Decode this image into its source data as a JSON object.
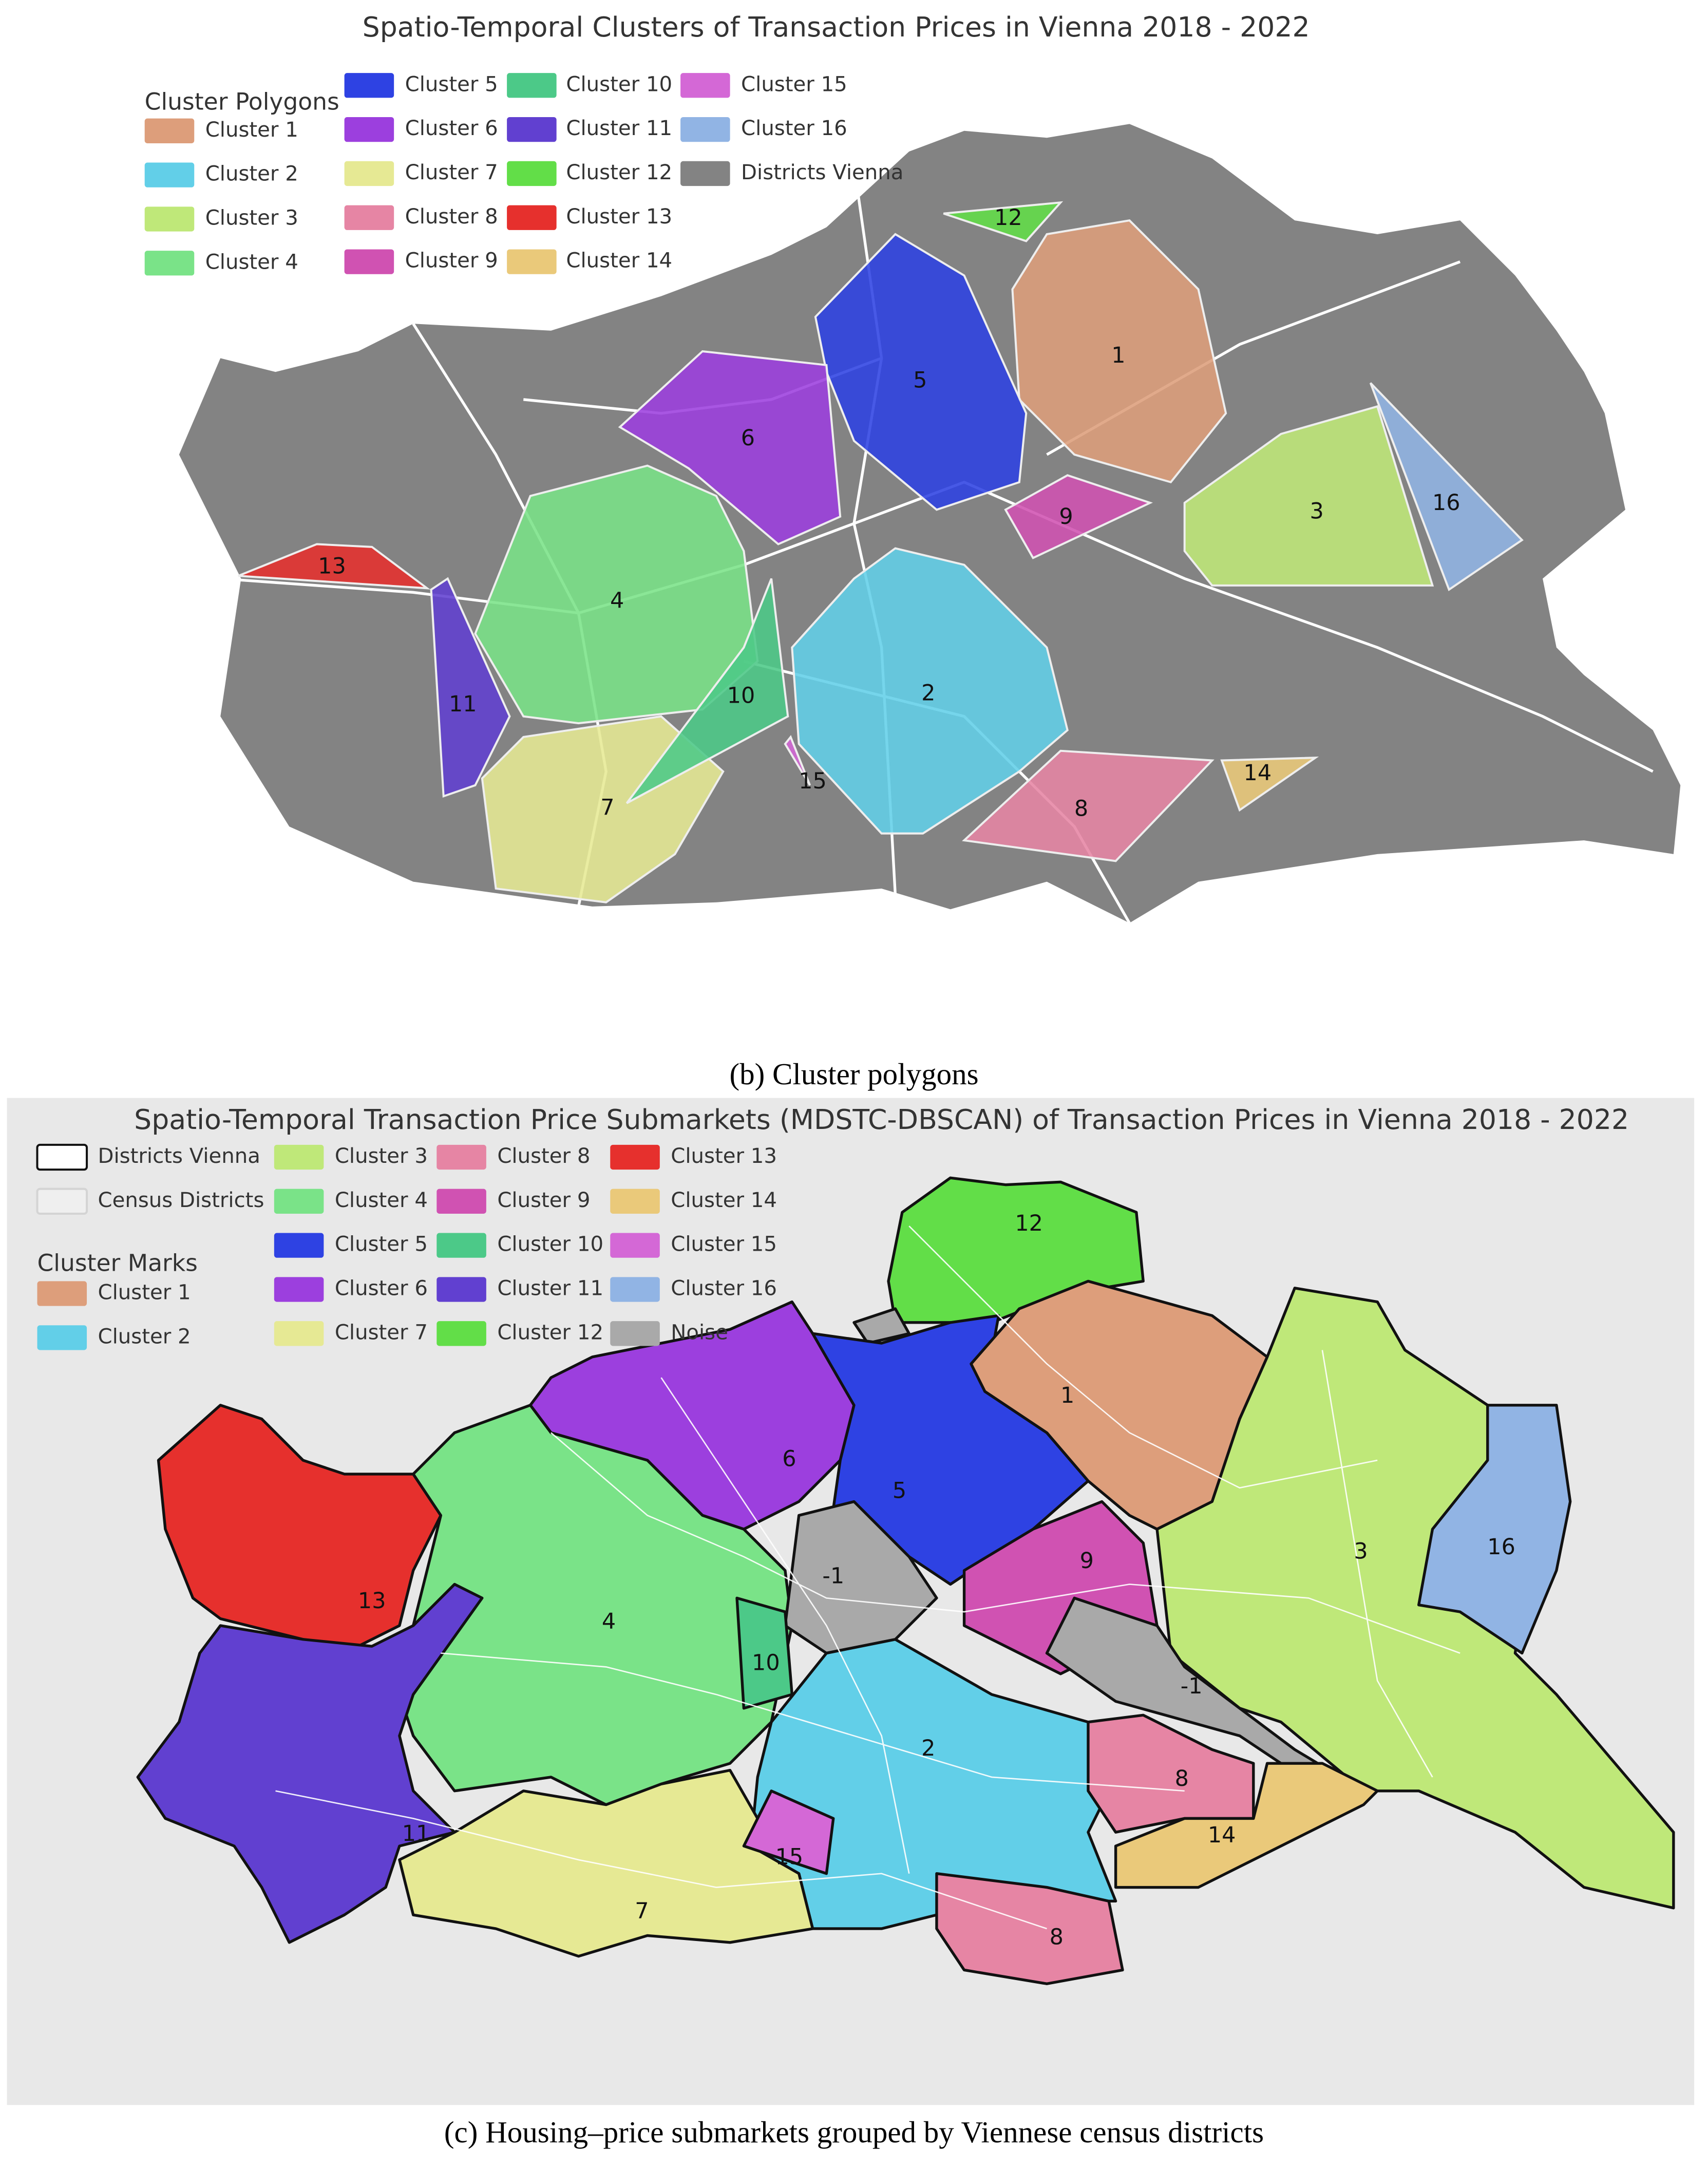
{
  "panel_b": {
    "title": "Spatio-Temporal Clusters of Transaction Prices in Vienna 2018 - 2022",
    "legend_title": "Cluster Polygons",
    "legend": [
      {
        "label": "Cluster 1",
        "color": "#dd9e7b"
      },
      {
        "label": "Cluster 2",
        "color": "#62cfe8"
      },
      {
        "label": "Cluster 3",
        "color": "#bfe879"
      },
      {
        "label": "Cluster 4",
        "color": "#7ae388"
      },
      {
        "label": "Cluster 5",
        "color": "#2e42e3"
      },
      {
        "label": "Cluster 6",
        "color": "#9c3fde"
      },
      {
        "label": "Cluster 7",
        "color": "#e6e994"
      },
      {
        "label": "Cluster 8",
        "color": "#e685a4"
      },
      {
        "label": "Cluster 9",
        "color": "#d052b2"
      },
      {
        "label": "Cluster 10",
        "color": "#4cc988"
      },
      {
        "label": "Cluster 11",
        "color": "#6140d0"
      },
      {
        "label": "Cluster 12",
        "color": "#62de48"
      },
      {
        "label": "Cluster 13",
        "color": "#e6302d"
      },
      {
        "label": "Cluster 14",
        "color": "#eac97a"
      },
      {
        "label": "Cluster 15",
        "color": "#d468d6"
      },
      {
        "label": "Cluster 16",
        "color": "#91b4e4"
      },
      {
        "label": "Districts Vienna",
        "color": "#838383"
      }
    ],
    "map_labels": [
      "12",
      "1",
      "5",
      "6",
      "9",
      "3",
      "16",
      "13",
      "4",
      "11",
      "10",
      "2",
      "15",
      "7",
      "8",
      "14"
    ],
    "caption": "(b) Cluster polygons"
  },
  "panel_c": {
    "title": "Spatio-Temporal Transaction Price Submarkets (MDSTC-DBSCAN) of Transaction Prices in Vienna 2018 - 2022",
    "legend_title": "Cluster Marks",
    "legend": [
      {
        "label": "Districts Vienna",
        "color": "#ffffff"
      },
      {
        "label": "Census Districts",
        "color": "#efefef"
      },
      {
        "label": "Cluster 1",
        "color": "#dd9e7b"
      },
      {
        "label": "Cluster 2",
        "color": "#62cfe8"
      },
      {
        "label": "Cluster 3",
        "color": "#bfe879"
      },
      {
        "label": "Cluster 4",
        "color": "#7ae388"
      },
      {
        "label": "Cluster 5",
        "color": "#2e42e3"
      },
      {
        "label": "Cluster 6",
        "color": "#9c3fde"
      },
      {
        "label": "Cluster 7",
        "color": "#e6e994"
      },
      {
        "label": "Cluster 8",
        "color": "#e685a4"
      },
      {
        "label": "Cluster 9",
        "color": "#d052b2"
      },
      {
        "label": "Cluster 10",
        "color": "#4cc988"
      },
      {
        "label": "Cluster 11",
        "color": "#6140d0"
      },
      {
        "label": "Cluster 12",
        "color": "#62de48"
      },
      {
        "label": "Cluster 13",
        "color": "#e6302d"
      },
      {
        "label": "Cluster 14",
        "color": "#eac97a"
      },
      {
        "label": "Cluster 15",
        "color": "#d468d6"
      },
      {
        "label": "Cluster 16",
        "color": "#91b4e4"
      },
      {
        "label": "Noise",
        "color": "#a9a9a9"
      }
    ],
    "map_labels": [
      "12",
      "1",
      "6",
      "5",
      "-1",
      "9",
      "3",
      "16",
      "13",
      "4",
      "10",
      "2",
      "8",
      "14",
      "11",
      "15",
      "7",
      "8",
      "-1"
    ],
    "caption": "(c) Housing–price submarkets grouped by Viennese census districts"
  }
}
